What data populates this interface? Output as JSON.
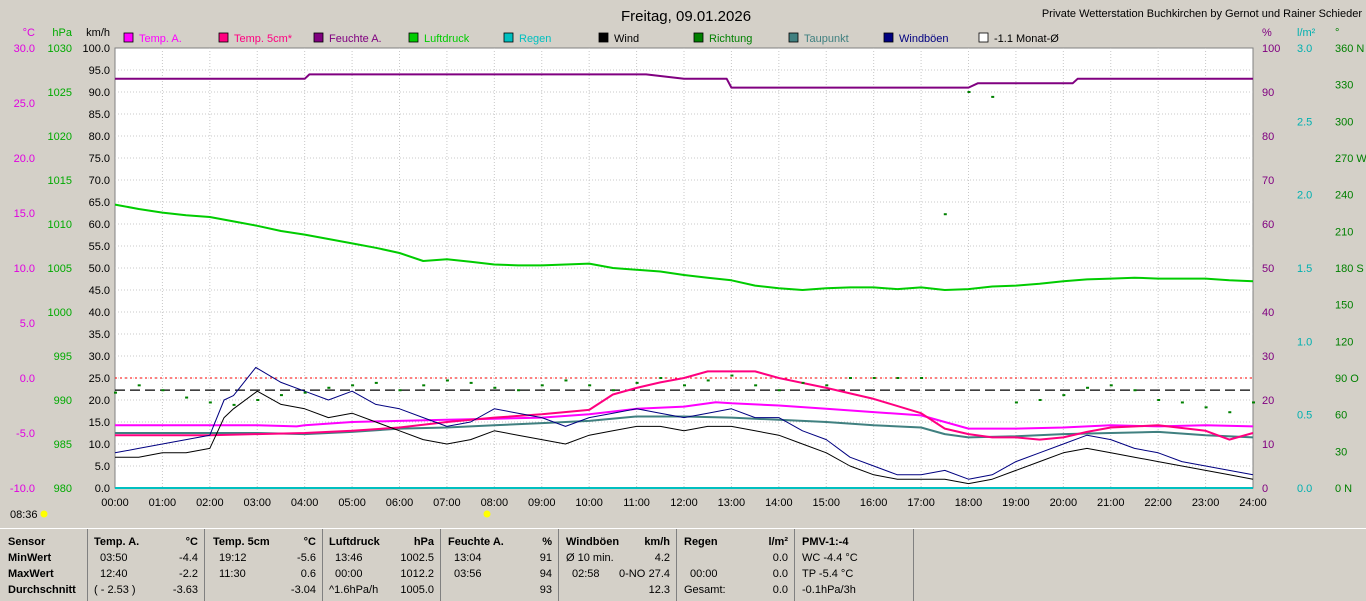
{
  "header": {
    "date_title": "Freitag, 09.01.2026",
    "station_name": "Private Wetterstation Buchkirchen by Gernot und Rainer Schieder"
  },
  "axis_units": {
    "temp": "°C",
    "pressure": "hPa",
    "wind": "km/h",
    "humidity": "%",
    "rain": "l/m²",
    "direction": "°"
  },
  "legend": [
    {
      "label": "Temp. A.",
      "color": "#ff00ff"
    },
    {
      "label": "Temp. 5cm*",
      "color": "#ff0080"
    },
    {
      "label": "Feuchte A.",
      "color": "#800080"
    },
    {
      "label": "Luftdruck",
      "color": "#00cc00"
    },
    {
      "label": "Regen",
      "color": "#00c0c0"
    },
    {
      "label": "Wind",
      "color": "#000000"
    },
    {
      "label": "Richtung",
      "color": "#008000"
    },
    {
      "label": "Taupunkt",
      "color": "#408080"
    },
    {
      "label": "Windböen",
      "color": "#000080"
    },
    {
      "label": "-1.1 Monat-Ø",
      "color": "#ffffff"
    }
  ],
  "clock_label": "08:36",
  "chart_data": {
    "type": "line",
    "x_unit": "time of day",
    "xlim": [
      "00:00",
      "24:00"
    ],
    "x_ticks": [
      "00:00",
      "01:00",
      "02:00",
      "03:00",
      "04:00",
      "05:00",
      "06:00",
      "07:00",
      "08:00",
      "09:00",
      "10:00",
      "11:00",
      "12:00",
      "13:00",
      "14:00",
      "15:00",
      "16:00",
      "17:00",
      "18:00",
      "19:00",
      "20:00",
      "21:00",
      "22:00",
      "23:00",
      "24:00"
    ],
    "axes": {
      "temp_c": {
        "range": [
          -10,
          30
        ],
        "ticks": [
          "30.0",
          "25.0",
          "20.0",
          "15.0",
          "10.0",
          "5.0",
          "0.0",
          "-5.0",
          "-10.0"
        ]
      },
      "pressure_hpa": {
        "range": [
          980,
          1030
        ],
        "ticks": [
          "1030",
          "1025",
          "1020",
          "1015",
          "1010",
          "1005",
          "1000",
          "995",
          "990",
          "985",
          "980"
        ]
      },
      "wind_kmh": {
        "range": [
          0,
          100
        ],
        "ticks": [
          "100.0",
          "95.0",
          "90.0",
          "85.0",
          "80.0",
          "75.0",
          "70.0",
          "65.0",
          "60.0",
          "55.0",
          "50.0",
          "45.0",
          "40.0",
          "35.0",
          "30.0",
          "25.0",
          "20.0",
          "15.0",
          "10.0",
          "5.0",
          "0.0"
        ]
      },
      "humidity_pct": {
        "range": [
          0,
          100
        ],
        "ticks": [
          "100",
          "90",
          "80",
          "70",
          "60",
          "50",
          "40",
          "30",
          "20",
          "10",
          "0"
        ]
      },
      "rain_lm2": {
        "range": [
          0,
          3
        ],
        "ticks": [
          "3.0",
          "2.5",
          "2.0",
          "1.5",
          "1.0",
          "0.5",
          "0.0"
        ]
      },
      "direction_deg": {
        "range": [
          0,
          360
        ],
        "ticks": [
          "360 N",
          "330",
          "300",
          "270 W",
          "240",
          "210",
          "180 S",
          "150",
          "120",
          "90 O",
          "60",
          "30",
          "0 N"
        ]
      }
    },
    "reference_lines": {
      "zero_temp_c": 0.0,
      "month_avg_temp_c": -1.1
    },
    "series": [
      {
        "name": "Feuchte A.",
        "axis": "humidity_pct",
        "color": "#800080",
        "x": [
          0,
          4,
          4.1,
          11.2,
          12,
          12.9,
          13,
          14,
          16,
          17,
          18,
          18.2,
          18.5,
          19,
          20.2,
          20.3,
          21,
          22,
          24
        ],
        "y": [
          93,
          93,
          94,
          94,
          93,
          93,
          91,
          91,
          91,
          91,
          91,
          92,
          92,
          92,
          92,
          93,
          93,
          93,
          93
        ]
      },
      {
        "name": "Luftdruck",
        "axis": "pressure_hpa",
        "color": "#00cc00",
        "x": [
          0,
          0.5,
          1,
          1.5,
          2,
          2.5,
          3,
          3.5,
          4,
          4.5,
          5,
          5.5,
          6,
          6.5,
          7,
          7.5,
          8,
          8.5,
          9,
          9.5,
          10,
          10.5,
          11,
          11.5,
          12,
          12.5,
          13,
          13.5,
          14,
          14.5,
          15,
          15.5,
          16,
          16.5,
          17,
          17.5,
          18,
          18.5,
          19,
          19.5,
          20,
          20.5,
          21,
          21.5,
          22,
          22.5,
          23,
          23.5,
          24
        ],
        "y": [
          1012.2,
          1011.7,
          1011.3,
          1011.0,
          1010.8,
          1010.3,
          1009.8,
          1009.2,
          1008.8,
          1008.3,
          1007.8,
          1007.3,
          1006.7,
          1005.8,
          1006.0,
          1005.7,
          1005.4,
          1005.3,
          1005.3,
          1005.4,
          1005.5,
          1005.0,
          1004.8,
          1004.6,
          1004.2,
          1003.9,
          1003.6,
          1003.0,
          1002.7,
          1002.5,
          1002.7,
          1002.8,
          1002.8,
          1002.6,
          1002.8,
          1002.5,
          1002.6,
          1002.9,
          1003.0,
          1003.2,
          1003.5,
          1003.7,
          1003.8,
          1003.9,
          1003.8,
          1003.8,
          1003.8,
          1003.6,
          1003.5
        ]
      },
      {
        "name": "Temp. 5cm*",
        "axis": "temp_c",
        "color": "#ff0080",
        "x": [
          0,
          1,
          2,
          3,
          4,
          5,
          6,
          7,
          8,
          9,
          10,
          10.5,
          11,
          11.5,
          12,
          12.5,
          13,
          13.5,
          14,
          15,
          16,
          17,
          17.5,
          18,
          18.5,
          19,
          19.5,
          20,
          20.5,
          21,
          22,
          23,
          23.5,
          24
        ],
        "y": [
          -5.2,
          -5.2,
          -5.2,
          -5.1,
          -5.0,
          -4.8,
          -4.5,
          -4.0,
          -3.6,
          -3.3,
          -2.9,
          -1.5,
          -0.9,
          -0.4,
          0.0,
          0.6,
          0.6,
          0.6,
          0.0,
          -0.9,
          -1.9,
          -3.2,
          -4.6,
          -5.1,
          -5.4,
          -5.4,
          -5.6,
          -5.4,
          -4.9,
          -4.5,
          -4.3,
          -4.8,
          -5.6,
          -5.0
        ]
      },
      {
        "name": "Temp. A.",
        "axis": "temp_c",
        "color": "#ff00ff",
        "x": [
          0,
          1,
          2,
          3,
          3.83,
          4,
          5,
          6,
          7,
          8,
          9,
          10,
          11,
          12,
          12.67,
          13,
          14,
          15,
          16,
          17,
          18,
          19,
          20,
          21,
          22,
          23,
          24
        ],
        "y": [
          -4.3,
          -4.3,
          -4.3,
          -4.3,
          -4.4,
          -4.3,
          -4.0,
          -3.9,
          -3.8,
          -3.7,
          -3.6,
          -3.3,
          -2.8,
          -2.6,
          -2.2,
          -2.3,
          -2.5,
          -2.8,
          -3.1,
          -3.4,
          -4.6,
          -4.6,
          -4.5,
          -4.3,
          -4.4,
          -4.3,
          -4.4
        ]
      },
      {
        "name": "Taupunkt",
        "axis": "temp_c",
        "color": "#408080",
        "x": [
          0,
          1,
          2,
          3,
          4,
          5,
          6,
          7,
          8,
          9,
          10,
          11,
          12,
          13,
          14,
          15,
          16,
          17,
          17.5,
          18,
          19,
          20,
          21,
          22,
          23,
          24
        ],
        "y": [
          -5.0,
          -5.0,
          -5.0,
          -5.0,
          -5.1,
          -4.9,
          -4.6,
          -4.5,
          -4.3,
          -4.1,
          -3.9,
          -3.5,
          -3.5,
          -3.6,
          -3.8,
          -4.0,
          -4.3,
          -4.5,
          -5.1,
          -5.4,
          -5.3,
          -5.1,
          -5.0,
          -4.9,
          -5.2,
          -5.4
        ]
      },
      {
        "name": "Windböen",
        "axis": "wind_kmh",
        "color": "#000080",
        "x": [
          0,
          0.5,
          1,
          1.5,
          2,
          2.3,
          2.5,
          2.97,
          3.5,
          4,
          4.5,
          5,
          5.5,
          6,
          6.5,
          7,
          7.5,
          8,
          8.5,
          9,
          9.5,
          10,
          10.5,
          11,
          11.5,
          12,
          12.5,
          13,
          13.5,
          14,
          14.5,
          15,
          15.5,
          16,
          16.5,
          17,
          17.5,
          18,
          18.5,
          19,
          19.5,
          20,
          20.5,
          21,
          21.5,
          22,
          22.5,
          23,
          23.5,
          24
        ],
        "y": [
          8,
          9,
          10,
          11,
          12,
          20,
          21,
          27.4,
          24,
          22,
          20,
          22,
          19,
          18,
          16,
          14,
          15,
          18,
          17,
          16,
          14,
          16,
          17,
          18,
          17,
          16,
          17,
          18,
          16,
          16,
          13,
          11,
          7,
          5,
          3,
          3,
          4,
          2,
          3,
          6,
          8,
          10,
          12,
          11,
          9,
          8,
          6,
          5,
          4,
          3
        ]
      },
      {
        "name": "Wind",
        "axis": "wind_kmh",
        "color": "#000000",
        "x": [
          0,
          0.5,
          1,
          1.5,
          2,
          2.3,
          2.5,
          3,
          3.5,
          4,
          4.5,
          5,
          5.5,
          6,
          6.5,
          7,
          7.5,
          8,
          8.5,
          9,
          9.5,
          10,
          10.5,
          11,
          11.5,
          12,
          12.5,
          13,
          13.5,
          14,
          14.5,
          15,
          15.5,
          16,
          16.5,
          17,
          17.5,
          18,
          18.5,
          19,
          19.5,
          20,
          20.5,
          21,
          21.5,
          22,
          22.5,
          23,
          23.5,
          24
        ],
        "y": [
          7,
          7,
          8,
          8,
          9,
          16,
          18,
          22,
          19,
          18,
          16,
          17,
          15,
          13,
          11,
          10,
          11,
          13,
          12,
          11,
          10,
          12,
          13,
          14,
          14,
          13,
          14,
          14,
          13,
          12,
          10,
          8,
          5,
          3,
          2,
          2,
          2,
          1,
          2,
          4,
          6,
          8,
          9,
          8,
          7,
          6,
          5,
          4,
          3,
          2
        ]
      },
      {
        "name": "Richtung",
        "axis": "direction_deg",
        "color": "#008000",
        "x": [
          0,
          0.5,
          1,
          1.5,
          2,
          2.5,
          3,
          3.5,
          4,
          4.5,
          5,
          5.5,
          6,
          6.5,
          7,
          7.5,
          8,
          8.5,
          9,
          9.5,
          10,
          10.5,
          11,
          11.5,
          12,
          12.5,
          13,
          13.5,
          14,
          14.5,
          15,
          15.5,
          16,
          16.5,
          17,
          17.5,
          18,
          18.5,
          19,
          19.5,
          20,
          20.5,
          21,
          21.5,
          22,
          22.5,
          23,
          23.5,
          24
        ],
        "y": [
          78,
          84,
          80,
          74,
          70,
          68,
          72,
          76,
          78,
          82,
          84,
          86,
          80,
          84,
          88,
          86,
          82,
          80,
          84,
          88,
          84,
          80,
          86,
          90,
          84,
          88,
          92,
          84,
          80,
          86,
          84,
          90,
          90,
          90,
          90,
          224,
          324,
          320,
          70,
          72,
          76,
          82,
          84,
          80,
          72,
          70,
          66,
          62,
          70
        ]
      },
      {
        "name": "Regen",
        "axis": "rain_lm2",
        "color": "#00c0c0",
        "x": [
          0,
          24
        ],
        "y": [
          0.0,
          0.0
        ]
      }
    ]
  },
  "stats_panel": {
    "sensor": {
      "title": "Sensor",
      "row1": "MinWert",
      "row2": "MaxWert",
      "row3": "Durchschnitt"
    },
    "temp_a": {
      "title": "Temp. A.",
      "unit": "°C",
      "min_time": "03:50",
      "min_val": "-4.4",
      "max_time": "12:40",
      "max_val": "-2.2",
      "avg_extra": "( - 2.53 )",
      "avg_val": "-3.63"
    },
    "temp_5cm": {
      "title": "Temp. 5cm",
      "unit": "°C",
      "min_time": "19:12",
      "min_val": "-5.6",
      "max_time": "11:30",
      "max_val": "0.6",
      "avg_val": "-3.04"
    },
    "pressure": {
      "title": "Luftdruck",
      "unit": "hPa",
      "min_time": "13:46",
      "min_val": "1002.5",
      "max_time": "00:00",
      "max_val": "1012.2",
      "avg_extra": "^1.6hPa/h",
      "avg_val": "1005.0"
    },
    "humidity": {
      "title": "Feuchte A.",
      "unit": "%",
      "min_time": "13:04",
      "min_val": "91",
      "max_time": "03:56",
      "max_val": "94",
      "avg_val": "93"
    },
    "gusts": {
      "title": "Windböen",
      "unit": "km/h",
      "min_time": "Ø 10 min.",
      "min_val": "4.2",
      "max_time": "02:58",
      "max_dir": "0-NO",
      "max_val": "27.4",
      "avg_val": "12.3"
    },
    "rain": {
      "title": "Regen",
      "unit": "l/m²",
      "min_val": "0.0",
      "max_time": "00:00",
      "max_val": "0.0",
      "avg_extra": "Gesamt:",
      "avg_val": "0.0"
    },
    "pmv": {
      "title": "PMV-1:-4",
      "row1": "WC -4.4 °C",
      "row2": "TP -5.4 °C",
      "row3": "-0.1hPa/3h"
    }
  }
}
